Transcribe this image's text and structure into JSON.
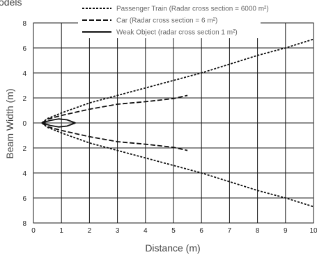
{
  "partial_title": "odels",
  "chart_data": {
    "type": "line",
    "xlabel": "Distance (m)",
    "ylabel": "Beam Width (m)",
    "xlim": [
      0,
      10
    ],
    "ylim": [
      -8,
      8
    ],
    "x_ticks": [
      "0",
      "1",
      "2",
      "3",
      "4",
      "5",
      "6",
      "7",
      "8",
      "9",
      "10"
    ],
    "y_ticks": [
      "8",
      "6",
      "4",
      "2",
      "0",
      "2",
      "4",
      "6",
      "8"
    ],
    "grid": true,
    "legend_position": "top",
    "series": [
      {
        "name": "Passenger Train (Radar cross section = 6000 m²)",
        "style": "dotted",
        "color": "#111111",
        "upper": [
          [
            0.3,
            0
          ],
          [
            0.5,
            0.35
          ],
          [
            1,
            0.8
          ],
          [
            2,
            1.6
          ],
          [
            3,
            2.2
          ],
          [
            4,
            2.8
          ],
          [
            5,
            3.4
          ],
          [
            6,
            4.0
          ],
          [
            7,
            4.7
          ],
          [
            8,
            5.4
          ],
          [
            9,
            6.0
          ],
          [
            10,
            6.7
          ]
        ],
        "lower": [
          [
            0.3,
            0
          ],
          [
            0.5,
            -0.35
          ],
          [
            1,
            -0.8
          ],
          [
            2,
            -1.6
          ],
          [
            3,
            -2.2
          ],
          [
            4,
            -2.8
          ],
          [
            5,
            -3.4
          ],
          [
            6,
            -4.0
          ],
          [
            7,
            -4.7
          ],
          [
            8,
            -5.4
          ],
          [
            9,
            -6.0
          ],
          [
            10,
            -6.7
          ]
        ]
      },
      {
        "name": "Car (Radar cross section = 6 m²)",
        "style": "dashed",
        "color": "#111111",
        "upper": [
          [
            0.3,
            0
          ],
          [
            0.5,
            0.3
          ],
          [
            1,
            0.6
          ],
          [
            2,
            1.1
          ],
          [
            3,
            1.5
          ],
          [
            4,
            1.7
          ],
          [
            5,
            1.95
          ],
          [
            5.5,
            2.2
          ]
        ],
        "lower": [
          [
            0.3,
            0
          ],
          [
            0.5,
            -0.3
          ],
          [
            1,
            -0.6
          ],
          [
            2,
            -1.1
          ],
          [
            3,
            -1.5
          ],
          [
            4,
            -1.7
          ],
          [
            5,
            -1.95
          ],
          [
            5.5,
            -2.2
          ]
        ]
      },
      {
        "name": "Weak Object (radar cross section 1 m²)",
        "style": "solid",
        "color": "#111111",
        "upper": [
          [
            0.3,
            0
          ],
          [
            0.6,
            0.2
          ],
          [
            0.9,
            0.32
          ],
          [
            1.2,
            0.25
          ],
          [
            1.5,
            0
          ]
        ],
        "lower": [
          [
            0.3,
            0
          ],
          [
            0.6,
            -0.2
          ],
          [
            0.9,
            -0.32
          ],
          [
            1.2,
            -0.25
          ],
          [
            1.5,
            0
          ]
        ]
      }
    ]
  }
}
